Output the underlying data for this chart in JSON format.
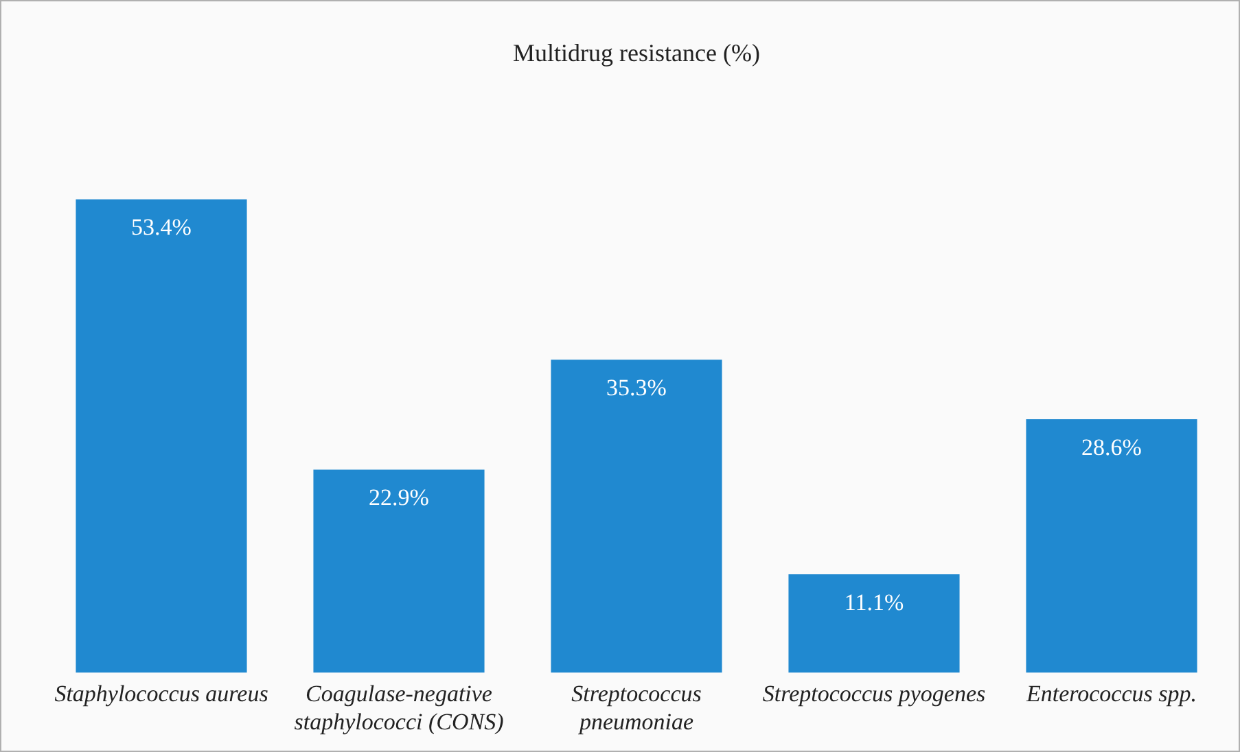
{
  "chart_data": {
    "type": "bar",
    "title": "Multidrug resistance (%)",
    "categories": [
      "Staphylococcus aureus",
      "Coagulase-negative staphylococci (CONS)",
      "Streptococcus pneumoniae",
      "Streptococcus pyogenes",
      "Enterococcus spp."
    ],
    "values": [
      53.4,
      22.9,
      35.3,
      11.1,
      28.6
    ],
    "value_labels": [
      "53.4%",
      "22.9%",
      "35.3%",
      "11.1%",
      "28.6%"
    ],
    "color": "#2089d0",
    "legend": false,
    "grid": false
  }
}
